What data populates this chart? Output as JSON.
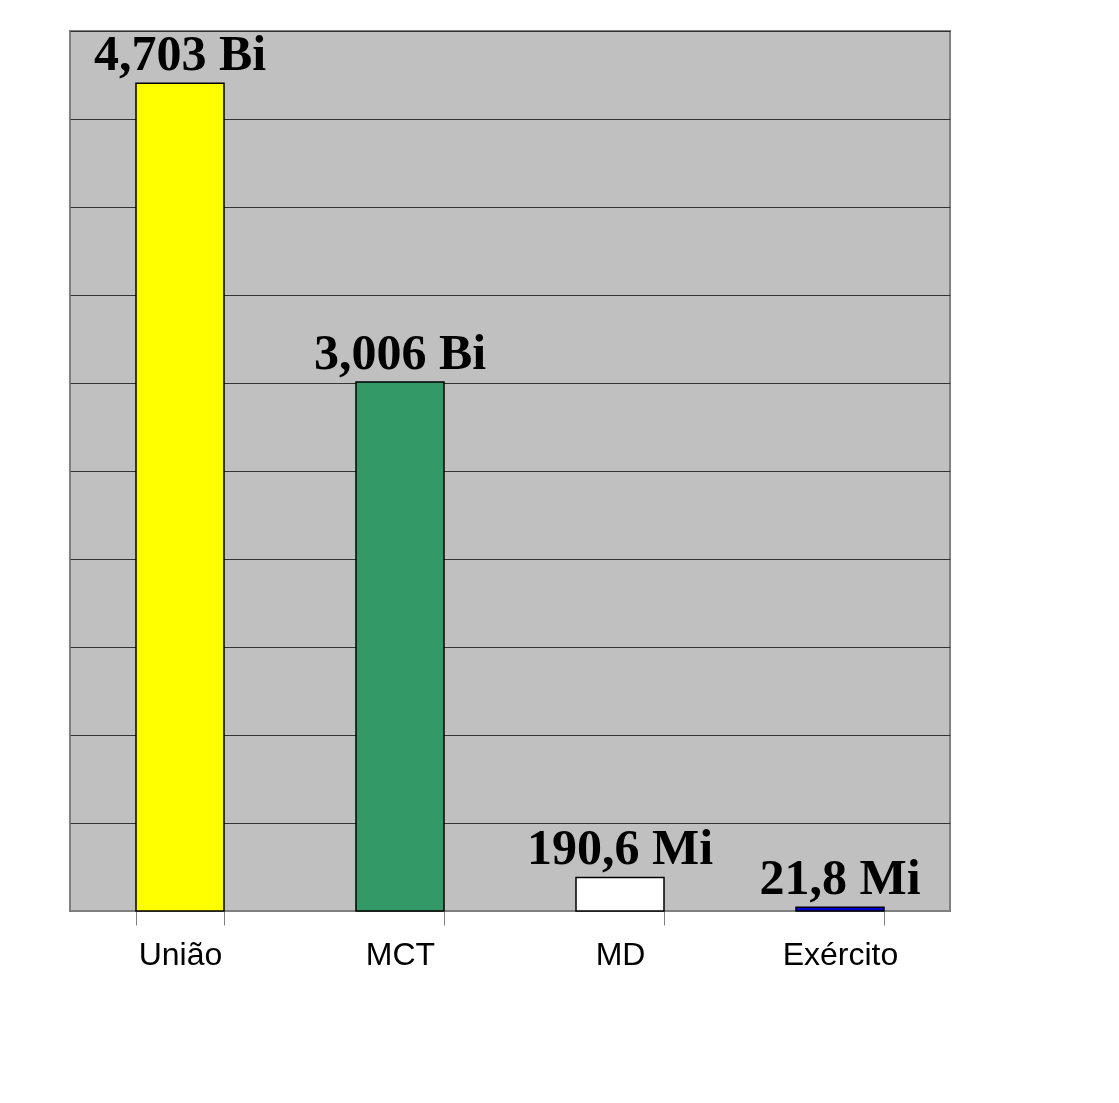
{
  "chart_data": {
    "type": "bar",
    "categories": [
      "União",
      "MCT",
      "MD",
      "Exército"
    ],
    "values": [
      4703,
      3006,
      190.6,
      21.8
    ],
    "value_labels": [
      "4,703 Bi",
      "3,006 Bi",
      "190,6 Mi",
      "21,8 Mi"
    ],
    "colors": [
      "#ffff00",
      "#339966",
      "#ffffff",
      "#0000cc"
    ],
    "grid": "y",
    "tick_labels": "x"
  }
}
